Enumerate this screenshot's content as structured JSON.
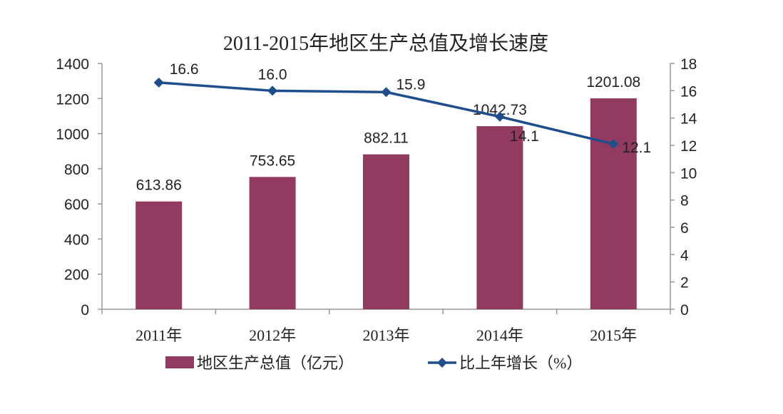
{
  "chart_data": {
    "type": "bar+line",
    "title": "2011-2015年地区生产总值及增长速度",
    "categories": [
      "2011年",
      "2012年",
      "2013年",
      "2014年",
      "2015年"
    ],
    "series": [
      {
        "name": "地区生产总值（亿元）",
        "type": "bar",
        "axis": "left",
        "values": [
          613.86,
          753.65,
          882.11,
          1042.73,
          1201.08
        ],
        "labels": [
          "613.86",
          "753.65",
          "882.11",
          "1042.73",
          "1201.08"
        ],
        "color": "#933a60"
      },
      {
        "name": "比上年增长（%）",
        "type": "line",
        "axis": "right",
        "values": [
          16.6,
          16.0,
          15.9,
          14.1,
          12.1
        ],
        "labels": [
          "16.6",
          "16.0",
          "15.9",
          "14.1",
          "12.1"
        ],
        "color": "#1f4e8c",
        "marker": "diamond"
      }
    ],
    "left_axis": {
      "ylim": [
        0,
        1400
      ],
      "ticks": [
        "0",
        "200",
        "400",
        "600",
        "800",
        "1000",
        "1200",
        "1400"
      ]
    },
    "right_axis": {
      "ylim": [
        0,
        18
      ],
      "ticks": [
        "0",
        "2",
        "4",
        "6",
        "8",
        "10",
        "12",
        "14",
        "16",
        "18"
      ]
    },
    "grid": false,
    "legend": "bottom"
  }
}
